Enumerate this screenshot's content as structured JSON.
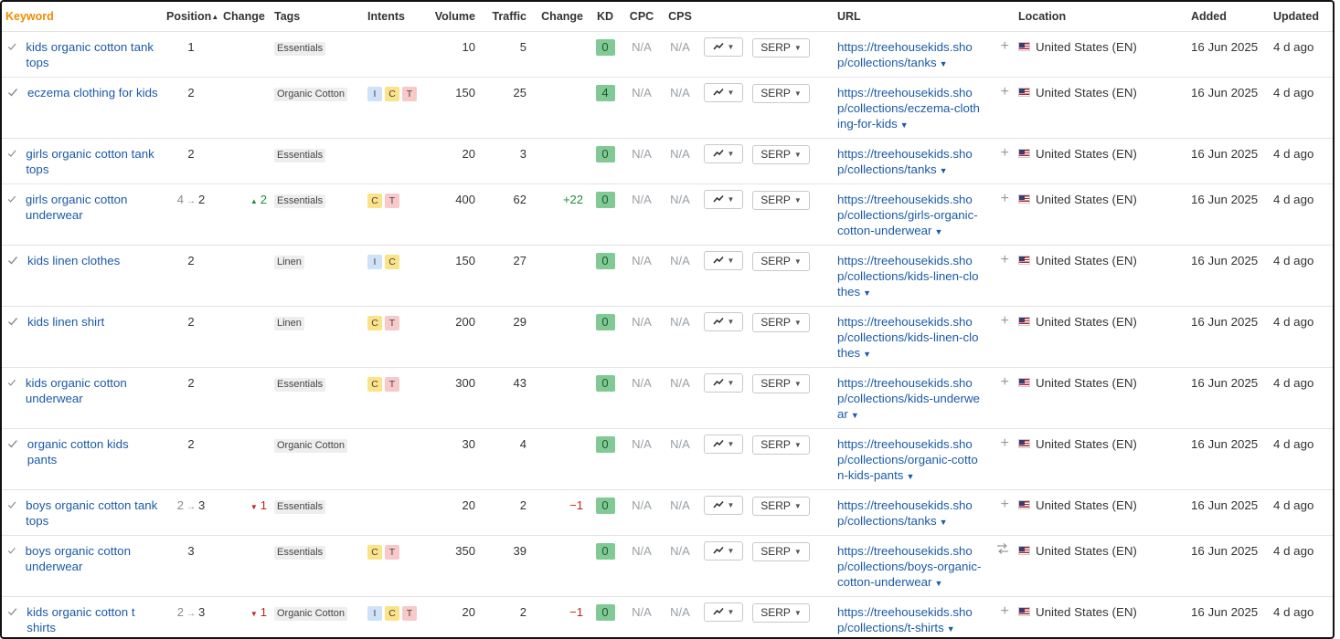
{
  "headers": {
    "keyword": "Keyword",
    "position": "Position",
    "change": "Change",
    "tags": "Tags",
    "intents": "Intents",
    "volume": "Volume",
    "traffic": "Traffic",
    "traffic_change": "Change",
    "kd": "KD",
    "cpc": "CPC",
    "cps": "CPS",
    "url": "URL",
    "location": "Location",
    "added": "Added",
    "updated": "Updated"
  },
  "serp_label": "SERP",
  "rows": [
    {
      "keyword": "kids organic cotton tank tops",
      "pos_old": "",
      "position": "1",
      "change": "",
      "change_dir": "",
      "tag": "Essentials",
      "intents": [],
      "volume": "10",
      "traffic": "5",
      "traffic_change": "",
      "kd": "0",
      "cpc": "N/A",
      "cps": "N/A",
      "url": "https://treehousekids.shop/collections/tanks",
      "url_icon": "plus-icon",
      "location": "United States (EN)",
      "added": "16 Jun 2025",
      "updated": "4 d ago"
    },
    {
      "keyword": "eczema clothing for kids",
      "pos_old": "",
      "position": "2",
      "change": "",
      "change_dir": "",
      "tag": "Organic Cotton",
      "intents": [
        "I",
        "C",
        "T"
      ],
      "volume": "150",
      "traffic": "25",
      "traffic_change": "",
      "kd": "4",
      "cpc": "N/A",
      "cps": "N/A",
      "url": "https://treehousekids.shop/collections/eczema-clothing-for-kids",
      "url_icon": "plus-icon",
      "location": "United States (EN)",
      "added": "16 Jun 2025",
      "updated": "4 d ago"
    },
    {
      "keyword": "girls organic cotton tank tops",
      "pos_old": "",
      "position": "2",
      "change": "",
      "change_dir": "",
      "tag": "Essentials",
      "intents": [],
      "volume": "20",
      "traffic": "3",
      "traffic_change": "",
      "kd": "0",
      "cpc": "N/A",
      "cps": "N/A",
      "url": "https://treehousekids.shop/collections/tanks",
      "url_icon": "plus-icon",
      "location": "United States (EN)",
      "added": "16 Jun 2025",
      "updated": "4 d ago"
    },
    {
      "keyword": "girls organic cotton underwear",
      "pos_old": "4",
      "position": "2",
      "change": "2",
      "change_dir": "up",
      "tag": "Essentials",
      "intents": [
        "C",
        "T"
      ],
      "volume": "400",
      "traffic": "62",
      "traffic_change": "+22",
      "kd": "0",
      "cpc": "N/A",
      "cps": "N/A",
      "url": "https://treehousekids.shop/collections/girls-organic-cotton-underwear",
      "url_icon": "plus-icon",
      "location": "United States (EN)",
      "added": "16 Jun 2025",
      "updated": "4 d ago"
    },
    {
      "keyword": "kids linen clothes",
      "pos_old": "",
      "position": "2",
      "change": "",
      "change_dir": "",
      "tag": "Linen",
      "intents": [
        "I",
        "C"
      ],
      "volume": "150",
      "traffic": "27",
      "traffic_change": "",
      "kd": "0",
      "cpc": "N/A",
      "cps": "N/A",
      "url": "https://treehousekids.shop/collections/kids-linen-clothes",
      "url_icon": "plus-icon",
      "location": "United States (EN)",
      "added": "16 Jun 2025",
      "updated": "4 d ago"
    },
    {
      "keyword": "kids linen shirt",
      "pos_old": "",
      "position": "2",
      "change": "",
      "change_dir": "",
      "tag": "Linen",
      "intents": [
        "C",
        "T"
      ],
      "volume": "200",
      "traffic": "29",
      "traffic_change": "",
      "kd": "0",
      "cpc": "N/A",
      "cps": "N/A",
      "url": "https://treehousekids.shop/collections/kids-linen-clothes",
      "url_icon": "plus-icon",
      "location": "United States (EN)",
      "added": "16 Jun 2025",
      "updated": "4 d ago"
    },
    {
      "keyword": "kids organic cotton underwear",
      "pos_old": "",
      "position": "2",
      "change": "",
      "change_dir": "",
      "tag": "Essentials",
      "intents": [
        "C",
        "T"
      ],
      "volume": "300",
      "traffic": "43",
      "traffic_change": "",
      "kd": "0",
      "cpc": "N/A",
      "cps": "N/A",
      "url": "https://treehousekids.shop/collections/kids-underwear",
      "url_icon": "plus-icon",
      "location": "United States (EN)",
      "added": "16 Jun 2025",
      "updated": "4 d ago"
    },
    {
      "keyword": "organic cotton kids pants",
      "pos_old": "",
      "position": "2",
      "change": "",
      "change_dir": "",
      "tag": "Organic Cotton",
      "intents": [],
      "volume": "30",
      "traffic": "4",
      "traffic_change": "",
      "kd": "0",
      "cpc": "N/A",
      "cps": "N/A",
      "url": "https://treehousekids.shop/collections/organic-cotton-kids-pants",
      "url_icon": "plus-icon",
      "location": "United States (EN)",
      "added": "16 Jun 2025",
      "updated": "4 d ago"
    },
    {
      "keyword": "boys organic cotton tank tops",
      "pos_old": "2",
      "position": "3",
      "change": "1",
      "change_dir": "down",
      "tag": "Essentials",
      "intents": [],
      "volume": "20",
      "traffic": "2",
      "traffic_change": "−1",
      "kd": "0",
      "cpc": "N/A",
      "cps": "N/A",
      "url": "https://treehousekids.shop/collections/tanks",
      "url_icon": "plus-icon",
      "location": "United States (EN)",
      "added": "16 Jun 2025",
      "updated": "4 d ago"
    },
    {
      "keyword": "boys organic cotton underwear",
      "pos_old": "",
      "position": "3",
      "change": "",
      "change_dir": "",
      "tag": "Essentials",
      "intents": [
        "C",
        "T"
      ],
      "volume": "350",
      "traffic": "39",
      "traffic_change": "",
      "kd": "0",
      "cpc": "N/A",
      "cps": "N/A",
      "url": "https://treehousekids.shop/collections/boys-organic-cotton-underwear",
      "url_icon": "swap-icon",
      "location": "United States (EN)",
      "added": "16 Jun 2025",
      "updated": "4 d ago"
    },
    {
      "keyword": "kids organic cotton t shirts",
      "pos_old": "2",
      "position": "3",
      "change": "1",
      "change_dir": "down",
      "tag": "Organic Cotton",
      "intents": [
        "I",
        "C",
        "T"
      ],
      "volume": "20",
      "traffic": "2",
      "traffic_change": "−1",
      "kd": "0",
      "cpc": "N/A",
      "cps": "N/A",
      "url": "https://treehousekids.shop/collections/t-shirts",
      "url_icon": "plus-icon",
      "location": "United States (EN)",
      "added": "16 Jun 2025",
      "updated": "4 d ago"
    }
  ]
}
